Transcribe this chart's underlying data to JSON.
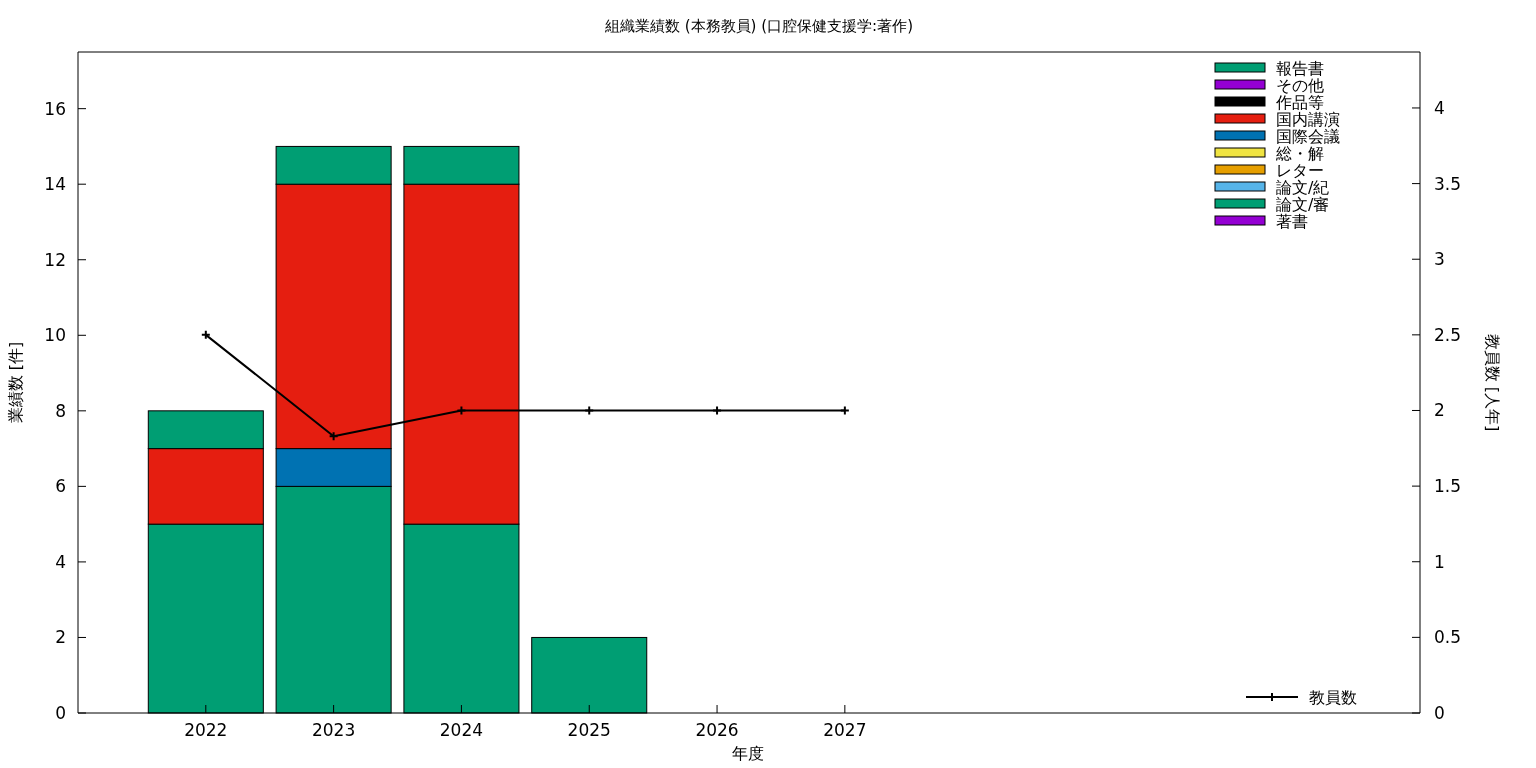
{
  "chart_data": {
    "type": "bar",
    "stacked": true,
    "title": "組織業績数 (本務教員) (口腔保健支援学:著作)",
    "xlabel": "年度",
    "ylabel": "業績数 [件]",
    "y2label": "教員数 [人年]",
    "x": [
      2022,
      2023,
      2024,
      2025,
      2026,
      2027
    ],
    "xlim": [
      2021,
      2031.5
    ],
    "xticks": [
      2022,
      2023,
      2024,
      2025,
      2026,
      2027
    ],
    "ylim": [
      0,
      17.5
    ],
    "yticks": [
      0,
      2,
      4,
      6,
      8,
      10,
      12,
      14,
      16
    ],
    "y2lim": [
      0,
      4.37
    ],
    "y2ticks": [
      0,
      0.5,
      1,
      1.5,
      2,
      2.5,
      3,
      3.5,
      4
    ],
    "legend": "right",
    "grid": false,
    "series": [
      {
        "name": "著書",
        "color": "#9400d3",
        "values": [
          0,
          0,
          0,
          0,
          0,
          0
        ]
      },
      {
        "name": "論文/審",
        "color": "#009e73",
        "values": [
          5,
          6,
          5,
          2,
          0,
          0
        ]
      },
      {
        "name": "論文/紀",
        "color": "#56b4e9",
        "values": [
          0,
          0,
          0,
          0,
          0,
          0
        ]
      },
      {
        "name": "レター",
        "color": "#e69f00",
        "values": [
          0,
          0,
          0,
          0,
          0,
          0
        ]
      },
      {
        "name": "総・解",
        "color": "#f0e442",
        "values": [
          0,
          0,
          0,
          0,
          0,
          0
        ]
      },
      {
        "name": "国際会議",
        "color": "#0072b2",
        "values": [
          0,
          1,
          0,
          0,
          0,
          0
        ]
      },
      {
        "name": "国内講演",
        "color": "#e51e10",
        "values": [
          2,
          7,
          9,
          0,
          0,
          0
        ]
      },
      {
        "name": "作品等",
        "color": "#000000",
        "values": [
          0,
          0,
          0,
          0,
          0,
          0
        ]
      },
      {
        "name": "その他",
        "color": "#9400d3",
        "values": [
          0,
          0,
          0,
          0,
          0,
          0
        ]
      },
      {
        "name": "報告書",
        "color": "#009e73",
        "values": [
          1,
          1,
          1,
          0,
          0,
          0
        ]
      },
      {
        "name": "教員数",
        "type": "line",
        "axis": "y2",
        "color": "#000000",
        "marker": "cross",
        "values": [
          2.5,
          1.83,
          2,
          2,
          2,
          2
        ]
      }
    ]
  }
}
